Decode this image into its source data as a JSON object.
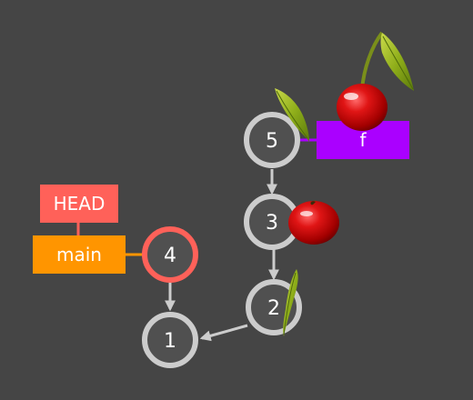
{
  "graph": {
    "commits": [
      {
        "id": "1",
        "label": "1",
        "is_head": false
      },
      {
        "id": "2",
        "label": "2",
        "is_head": false
      },
      {
        "id": "3",
        "label": "3",
        "is_head": false
      },
      {
        "id": "4",
        "label": "4",
        "is_head": true
      },
      {
        "id": "5",
        "label": "5",
        "is_head": false
      }
    ],
    "edges": [
      {
        "from": "4",
        "to": "1"
      },
      {
        "from": "2",
        "to": "1"
      },
      {
        "from": "3",
        "to": "2"
      },
      {
        "from": "5",
        "to": "3"
      }
    ],
    "refs": {
      "head_label": "HEAD",
      "main_label": "main",
      "f_label": "f"
    },
    "decorations": [
      "cherry-icon",
      "cherry-icon",
      "leaf-icon",
      "leaf-icon"
    ]
  },
  "colors": {
    "background": "#454545",
    "commit_fill": "#505050",
    "commit_ring": "#cccccc",
    "head_ring": "#ff6159",
    "head_ref": "#ff6159",
    "main_ref": "#ff9500",
    "f_ref": "#aa00ff",
    "edge": "#cccccc"
  }
}
